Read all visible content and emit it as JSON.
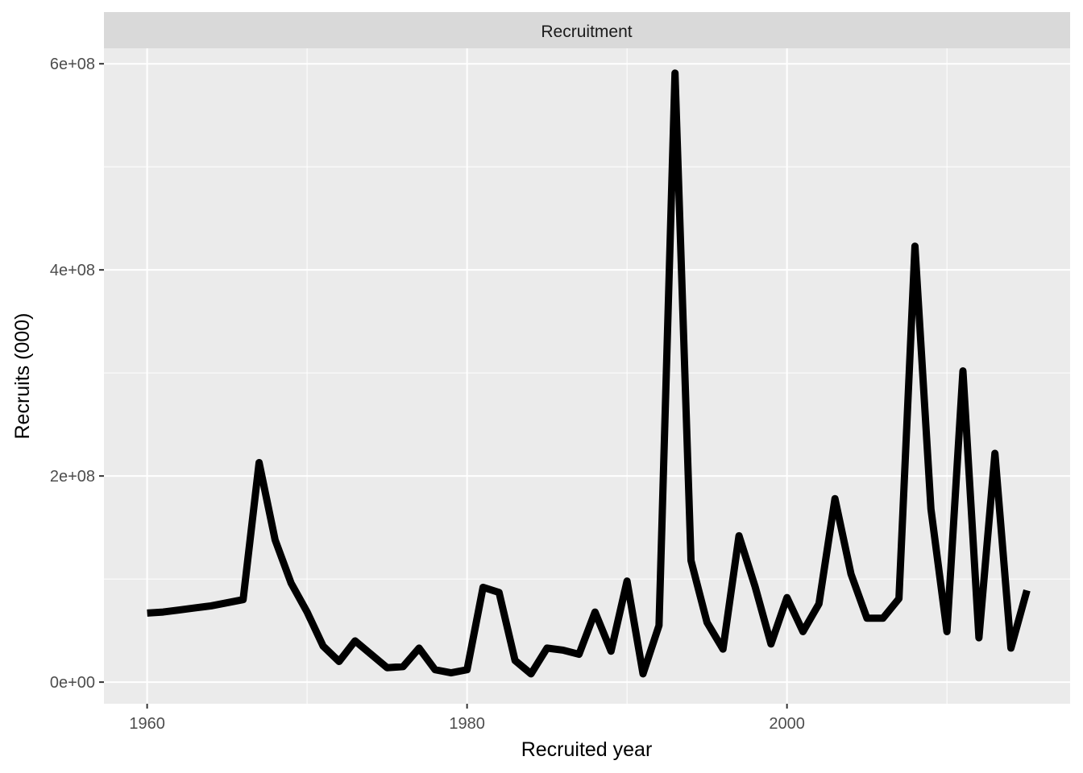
{
  "chart_data": {
    "type": "line",
    "facet_label": "Recruitment",
    "xlabel": "Recruited year",
    "ylabel": "Recruits (000)",
    "xlim": [
      1957.3,
      2017.7
    ],
    "ylim": [
      -21000000,
      615000000
    ],
    "x_ticks": [
      {
        "value": 1960,
        "label": "1960"
      },
      {
        "value": 1980,
        "label": "1980"
      },
      {
        "value": 2000,
        "label": "2000"
      }
    ],
    "y_ticks": [
      {
        "value": 0,
        "label": "0e+00"
      },
      {
        "value": 200000000,
        "label": "2e+08"
      },
      {
        "value": 400000000,
        "label": "4e+08"
      },
      {
        "value": 600000000,
        "label": "6e+08"
      }
    ],
    "grid": true,
    "legend": "none",
    "colors": {
      "panel_background": "#ebebeb",
      "grid_line": "#ffffff",
      "strip_background": "#d9d9d9",
      "line": "#000000"
    },
    "series": [
      {
        "x": [
          1960,
          1961,
          1962,
          1963,
          1964,
          1965,
          1966,
          1967,
          1968,
          1969,
          1970,
          1971,
          1972,
          1973,
          1974,
          1975,
          1976,
          1977,
          1978,
          1979,
          1980,
          1981,
          1982,
          1983,
          1984,
          1985,
          1986,
          1987,
          1988,
          1989,
          1990,
          1991,
          1992,
          1993,
          1994,
          1995,
          1996,
          1997,
          1998,
          1999,
          2000,
          2001,
          2002,
          2003,
          2004,
          2005,
          2006,
          2007,
          2008,
          2009,
          2010,
          2011,
          2012,
          2013,
          2014,
          2015
        ],
        "y": [
          67000000,
          68000000,
          70000000,
          72000000,
          74000000,
          77000000,
          80000000,
          213000000,
          138000000,
          96000000,
          68000000,
          35000000,
          20000000,
          40000000,
          27000000,
          14000000,
          15000000,
          33000000,
          12000000,
          9000000,
          12000000,
          92000000,
          87000000,
          21000000,
          8000000,
          33000000,
          31000000,
          27000000,
          68000000,
          30000000,
          98000000,
          8000000,
          55000000,
          591000000,
          118000000,
          58000000,
          32000000,
          142000000,
          93000000,
          37000000,
          82000000,
          49000000,
          76000000,
          178000000,
          105000000,
          62000000,
          62000000,
          81000000,
          423000000,
          168000000,
          49000000,
          302000000,
          43000000,
          222000000,
          33000000,
          89000000
        ]
      }
    ]
  }
}
